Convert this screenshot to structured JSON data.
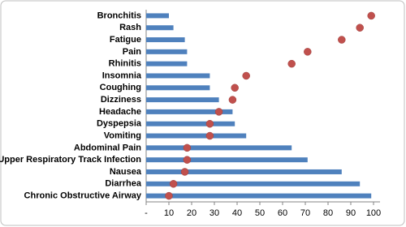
{
  "chart_data": {
    "type": "bar-dot",
    "categories": [
      "Bronchitis",
      "Rash",
      "Fatigue",
      "Pain",
      "Rhinitis",
      "Insomnia",
      "Coughing",
      "Dizziness",
      "Headache",
      "Dyspepsia",
      "Vomiting",
      "Abdominal Pain",
      "Upper Respiratory Track Infection",
      "Nausea",
      "Diarrhea",
      "Chronic Obstructive Airway"
    ],
    "series": [
      {
        "type": "bar",
        "color": "#4f81bd",
        "values": [
          10,
          12,
          17,
          18,
          18,
          28,
          28,
          32,
          38,
          39,
          44,
          64,
          71,
          86,
          94,
          99
        ]
      },
      {
        "type": "dot",
        "color": "#c0504d",
        "values": [
          99,
          94,
          86,
          71,
          64,
          44,
          39,
          38,
          32,
          28,
          28,
          18,
          18,
          17,
          12,
          10
        ]
      }
    ],
    "xlim": [
      0,
      100
    ],
    "xticks": [
      {
        "value": 0,
        "label": "-"
      },
      10,
      20,
      30,
      40,
      50,
      60,
      70,
      80,
      90,
      100
    ]
  }
}
